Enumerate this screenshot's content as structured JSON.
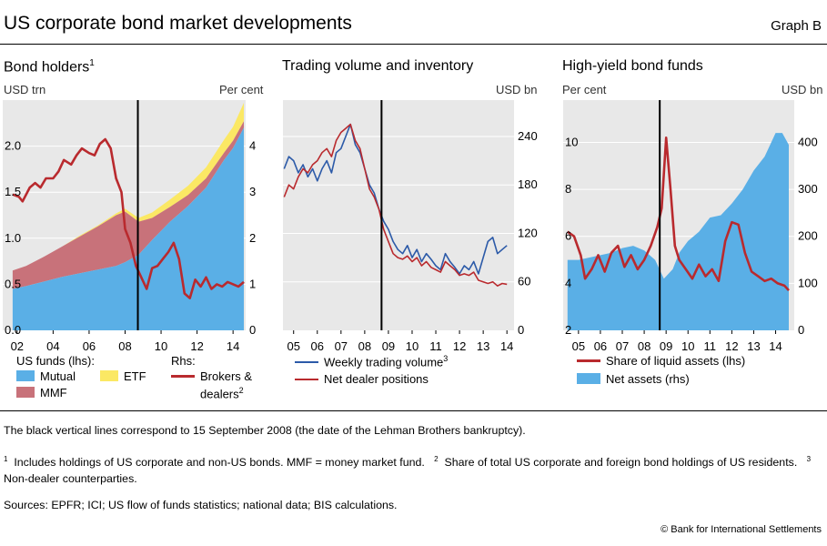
{
  "header": {
    "title": "US corporate bond market developments",
    "graph_label": "Graph B"
  },
  "colors": {
    "mutual": "#5aafe6",
    "mmf": "#c8727a",
    "etf": "#fbe864",
    "red": "#b92a2e",
    "blue": "#2c5aa8",
    "plot_bg": "#e8e8e8",
    "net_assets": "#5aafe6"
  },
  "chart_data": [
    {
      "type": "area",
      "title": "Bond holders",
      "title_footnote": "1",
      "left_unit": "USD trn",
      "right_unit": "Per cent",
      "x_ticks": [
        "02",
        "04",
        "06",
        "08",
        "10",
        "12",
        "14"
      ],
      "x_tick_years": [
        2002,
        2004,
        2006,
        2008,
        2010,
        2012,
        2014
      ],
      "xlim": [
        2001.2,
        2014.7
      ],
      "ylim_left": [
        0,
        2.5
      ],
      "y_ticks_left": [
        "0.0",
        "0.5",
        "1.0",
        "1.5",
        "2.0"
      ],
      "y_tick_values_left": [
        0,
        0.5,
        1.0,
        1.5,
        2.0
      ],
      "ylim_right": [
        0,
        5
      ],
      "y_ticks_right": [
        "0",
        "1",
        "2",
        "3",
        "4"
      ],
      "y_tick_values_right": [
        0,
        1,
        2,
        3,
        4
      ],
      "vline_x": 2008.71,
      "x": [
        2001.75,
        2002.5,
        2003.5,
        2004.5,
        2005.5,
        2006.5,
        2007.5,
        2008.0,
        2008.75,
        2009.5,
        2010.5,
        2011.5,
        2012.5,
        2013.5,
        2014.0,
        2014.6
      ],
      "series": [
        {
          "name": "Mutual",
          "axis": "left",
          "kind": "area",
          "values": [
            0.45,
            0.48,
            0.53,
            0.58,
            0.62,
            0.66,
            0.7,
            0.74,
            0.82,
            0.98,
            1.18,
            1.35,
            1.55,
            1.85,
            1.98,
            2.2
          ]
        },
        {
          "name": "MMF",
          "axis": "left",
          "kind": "area",
          "values": [
            0.2,
            0.22,
            0.27,
            0.33,
            0.4,
            0.47,
            0.55,
            0.55,
            0.36,
            0.24,
            0.16,
            0.12,
            0.1,
            0.08,
            0.08,
            0.07
          ]
        },
        {
          "name": "ETF",
          "axis": "left",
          "kind": "area",
          "values": [
            0.0,
            0.0,
            0.0,
            0.0,
            0.01,
            0.01,
            0.02,
            0.03,
            0.04,
            0.06,
            0.08,
            0.1,
            0.12,
            0.14,
            0.15,
            0.2
          ]
        }
      ],
      "red_series": {
        "name": "Brokers & dealers",
        "axis": "right",
        "x": [
          2001.75,
          2002.1,
          2002.3,
          2002.7,
          2003.0,
          2003.3,
          2003.6,
          2004.0,
          2004.3,
          2004.6,
          2005.0,
          2005.3,
          2005.6,
          2006.0,
          2006.3,
          2006.6,
          2006.9,
          2007.2,
          2007.5,
          2007.8,
          2008.0,
          2008.3,
          2008.6,
          2008.9,
          2009.2,
          2009.5,
          2009.8,
          2010.1,
          2010.4,
          2010.7,
          2011.0,
          2011.3,
          2011.6,
          2011.9,
          2012.2,
          2012.5,
          2012.8,
          2013.1,
          2013.4,
          2013.7,
          2014.0,
          2014.3,
          2014.6
        ],
        "values": [
          2.95,
          2.9,
          2.8,
          3.1,
          3.2,
          3.1,
          3.3,
          3.3,
          3.45,
          3.7,
          3.6,
          3.8,
          3.95,
          3.85,
          3.8,
          4.05,
          4.15,
          3.95,
          3.3,
          3.0,
          2.2,
          1.9,
          1.4,
          1.15,
          0.9,
          1.35,
          1.4,
          1.55,
          1.7,
          1.9,
          1.55,
          0.8,
          0.7,
          1.1,
          0.95,
          1.15,
          0.9,
          1.0,
          0.95,
          1.05,
          1.0,
          0.95,
          1.05
        ]
      },
      "legend": {
        "group_label": "US funds (lhs):",
        "mutual": "Mutual",
        "etf": "ETF",
        "mmf": "MMF",
        "rhs_label": "Rhs:",
        "brokers_line1": "Brokers &",
        "brokers_line2": "dealers",
        "brokers_footnote": "2"
      }
    },
    {
      "type": "line",
      "title": "Trading volume and inventory",
      "right_unit": "USD bn",
      "x_ticks": [
        "05",
        "06",
        "07",
        "08",
        "09",
        "10",
        "11",
        "12",
        "13",
        "14"
      ],
      "x_tick_years": [
        2005,
        2006,
        2007,
        2008,
        2009,
        2010,
        2011,
        2012,
        2013,
        2014
      ],
      "xlim": [
        2004.55,
        2014.3
      ],
      "ylim_right": [
        0,
        285
      ],
      "y_ticks_right": [
        "0",
        "60",
        "120",
        "180",
        "240"
      ],
      "y_tick_values_right": [
        0,
        60,
        120,
        180,
        240
      ],
      "vline_x": 2008.71,
      "series": [
        {
          "name": "Weekly trading volume",
          "footnote": "3",
          "x": [
            2004.6,
            2004.8,
            2005.0,
            2005.2,
            2005.4,
            2005.6,
            2005.8,
            2006.0,
            2006.2,
            2006.4,
            2006.6,
            2006.8,
            2007.0,
            2007.2,
            2007.4,
            2007.6,
            2007.8,
            2008.0,
            2008.2,
            2008.4,
            2008.6,
            2008.8,
            2009.0,
            2009.2,
            2009.4,
            2009.6,
            2009.8,
            2010.0,
            2010.2,
            2010.4,
            2010.6,
            2010.8,
            2011.0,
            2011.2,
            2011.4,
            2011.6,
            2011.8,
            2012.0,
            2012.2,
            2012.4,
            2012.6,
            2012.8,
            2013.0,
            2013.2,
            2013.4,
            2013.6,
            2013.8,
            2014.0
          ],
          "values": [
            200,
            215,
            210,
            195,
            205,
            190,
            200,
            185,
            200,
            210,
            195,
            220,
            225,
            240,
            255,
            230,
            220,
            200,
            180,
            170,
            150,
            135,
            125,
            110,
            100,
            95,
            105,
            90,
            100,
            85,
            95,
            88,
            80,
            75,
            95,
            85,
            78,
            70,
            80,
            75,
            85,
            70,
            90,
            110,
            115,
            95,
            100,
            105
          ]
        },
        {
          "name": "Net dealer positions",
          "x": [
            2004.6,
            2004.8,
            2005.0,
            2005.2,
            2005.4,
            2005.6,
            2005.8,
            2006.0,
            2006.2,
            2006.4,
            2006.6,
            2006.8,
            2007.0,
            2007.2,
            2007.4,
            2007.6,
            2007.8,
            2008.0,
            2008.2,
            2008.4,
            2008.6,
            2008.8,
            2009.0,
            2009.2,
            2009.4,
            2009.6,
            2009.8,
            2010.0,
            2010.2,
            2010.4,
            2010.6,
            2010.8,
            2011.0,
            2011.2,
            2011.4,
            2011.6,
            2011.8,
            2012.0,
            2012.2,
            2012.4,
            2012.6,
            2012.8,
            2013.0,
            2013.2,
            2013.4,
            2013.6,
            2013.8,
            2014.0
          ],
          "values": [
            165,
            180,
            175,
            190,
            200,
            195,
            205,
            210,
            220,
            225,
            215,
            235,
            245,
            250,
            255,
            235,
            225,
            200,
            175,
            165,
            150,
            125,
            110,
            95,
            90,
            88,
            92,
            85,
            90,
            80,
            85,
            78,
            75,
            72,
            85,
            80,
            75,
            68,
            70,
            68,
            72,
            62,
            60,
            58,
            60,
            55,
            58,
            57
          ]
        }
      ]
    },
    {
      "type": "area",
      "title": "High-yield bond funds",
      "left_unit": "Per cent",
      "right_unit": "USD bn",
      "x_ticks": [
        "05",
        "06",
        "07",
        "08",
        "09",
        "10",
        "11",
        "12",
        "13",
        "14"
      ],
      "x_tick_years": [
        2005,
        2006,
        2007,
        2008,
        2009,
        2010,
        2011,
        2012,
        2013,
        2014
      ],
      "xlim": [
        2004.3,
        2014.85
      ],
      "ylim_left": [
        2,
        11.8
      ],
      "y_ticks_left": [
        "2",
        "4",
        "6",
        "8",
        "10"
      ],
      "y_tick_values_left": [
        2,
        4,
        6,
        8,
        10
      ],
      "ylim_right": [
        0,
        490
      ],
      "y_ticks_right": [
        "0",
        "100",
        "200",
        "300",
        "400"
      ],
      "y_tick_values_right": [
        0,
        100,
        200,
        300,
        400
      ],
      "vline_x": 2008.71,
      "series": [
        {
          "name": "Net assets (rhs)",
          "axis": "right",
          "kind": "area",
          "x": [
            2004.5,
            2005.0,
            2005.5,
            2006.0,
            2006.5,
            2007.0,
            2007.5,
            2008.0,
            2008.5,
            2008.9,
            2009.3,
            2009.6,
            2010.0,
            2010.5,
            2011.0,
            2011.5,
            2012.0,
            2012.5,
            2013.0,
            2013.5,
            2014.0,
            2014.3,
            2014.6
          ],
          "values": [
            150,
            150,
            155,
            160,
            165,
            175,
            180,
            170,
            150,
            110,
            130,
            165,
            190,
            210,
            240,
            245,
            270,
            300,
            340,
            370,
            420,
            420,
            395
          ]
        },
        {
          "name": "Share of liquid assets (lhs)",
          "axis": "left",
          "kind": "line",
          "x": [
            2004.5,
            2004.8,
            2005.1,
            2005.3,
            2005.6,
            2005.9,
            2006.2,
            2006.5,
            2006.8,
            2007.1,
            2007.4,
            2007.7,
            2008.0,
            2008.3,
            2008.6,
            2008.8,
            2009.0,
            2009.2,
            2009.4,
            2009.6,
            2009.9,
            2010.2,
            2010.5,
            2010.8,
            2011.1,
            2011.4,
            2011.7,
            2012.0,
            2012.3,
            2012.6,
            2012.9,
            2013.2,
            2013.5,
            2013.8,
            2014.1,
            2014.4,
            2014.6
          ],
          "values": [
            6.2,
            6.0,
            5.2,
            4.2,
            4.6,
            5.2,
            4.5,
            5.3,
            5.6,
            4.7,
            5.2,
            4.6,
            5.0,
            5.6,
            6.4,
            7.2,
            10.2,
            8.0,
            5.6,
            5.0,
            4.6,
            4.2,
            4.8,
            4.3,
            4.6,
            4.1,
            5.8,
            6.6,
            6.5,
            5.3,
            4.5,
            4.3,
            4.1,
            4.2,
            4.0,
            3.9,
            3.7
          ]
        }
      ]
    }
  ],
  "legend2": {
    "volume": "Weekly trading volume",
    "volume_footnote": "3",
    "dealer": "Net dealer positions"
  },
  "legend3": {
    "liquid": "Share of liquid assets (lhs)",
    "net": "Net assets (rhs)"
  },
  "notes": {
    "vline_note": "The black vertical lines correspond to 15 September 2008 (the date of the Lehman Brothers bankruptcy).",
    "fn1_num": "1",
    "fn1": "Includes holdings of US corporate and non-US bonds. MMF = money market fund.",
    "fn2_num": "2",
    "fn2": "Share of total US corporate and foreign bond holdings of US residents.",
    "fn3_num": "3",
    "fn3": "Non-dealer counterparties.",
    "sources": "Sources: EPFR; ICI; US flow of funds statistics; national data; BIS calculations.",
    "copyright": "© Bank for International Settlements"
  }
}
